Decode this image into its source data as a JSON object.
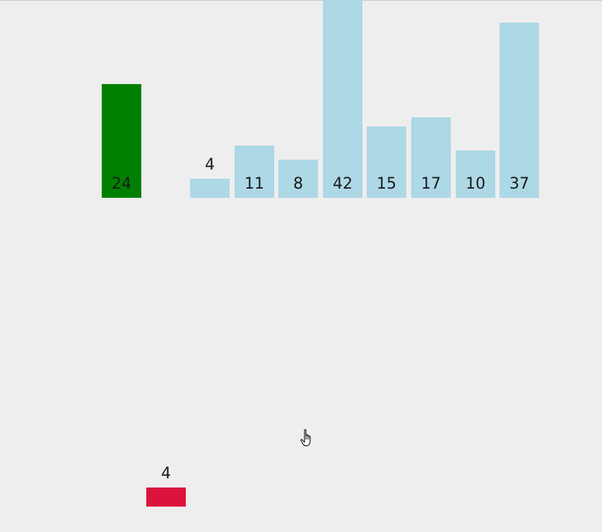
{
  "chart_data": {
    "type": "bar",
    "baseline_bars": {
      "values": [
        4,
        11,
        8,
        42,
        15,
        17,
        10,
        37
      ],
      "color": "#add8e6"
    },
    "pivot_bar": {
      "value": 24,
      "color": "#008000"
    },
    "moving_bar": {
      "value": 4,
      "color": "#dc143c"
    }
  },
  "cursor": {
    "icon": "hand-pointer-icon"
  }
}
